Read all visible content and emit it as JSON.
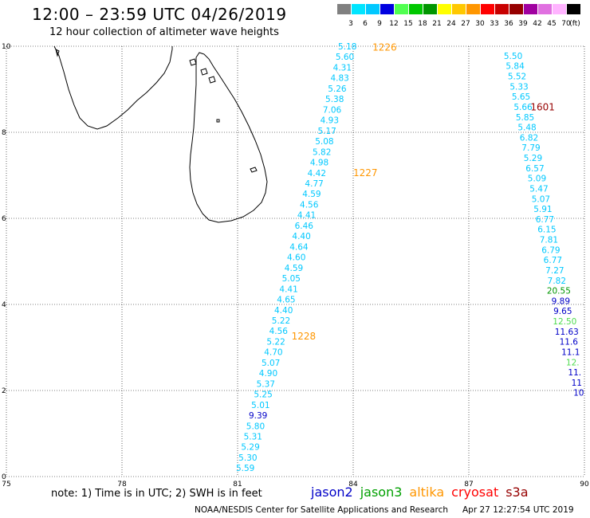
{
  "header": {
    "title": "12:00 – 23:59 UTC 04/26/2019",
    "subtitle": "12 hour collection of altimeter wave heights"
  },
  "colorbar": {
    "unit_label": "(ft)",
    "bins": [
      {
        "label": "3",
        "color": "#808080"
      },
      {
        "label": "6",
        "color": "#00e5ff"
      },
      {
        "label": "9",
        "color": "#00c8ff"
      },
      {
        "label": "12",
        "color": "#0000e0"
      },
      {
        "label": "15",
        "color": "#50ff50"
      },
      {
        "label": "18",
        "color": "#00c800"
      },
      {
        "label": "21",
        "color": "#009600"
      },
      {
        "label": "24",
        "color": "#ffff00"
      },
      {
        "label": "27",
        "color": "#ffc800"
      },
      {
        "label": "30",
        "color": "#ff9600"
      },
      {
        "label": "33",
        "color": "#ff0000"
      },
      {
        "label": "36",
        "color": "#c80000"
      },
      {
        "label": "39",
        "color": "#960000"
      },
      {
        "label": "42",
        "color": "#a000a0"
      },
      {
        "label": "45",
        "color": "#e070e0"
      },
      {
        "label": "70",
        "color": "#ffb4ff"
      },
      {
        "label": "",
        "color": "#000000"
      }
    ]
  },
  "map": {
    "lon_range": [
      75,
      90
    ],
    "lat_range": [
      0,
      10
    ],
    "x_ticks": [
      "75",
      "78",
      "81",
      "84",
      "87",
      "90"
    ],
    "y_ticks": [
      "0",
      "2",
      "4",
      "6",
      "8",
      "10"
    ],
    "grid": "dotted",
    "land_feature": "Sri Lanka and southern India coastline",
    "pass_labels": [
      {
        "text": "1226",
        "lon": 84.5,
        "lat": 9.97,
        "color": "#ff9600"
      },
      {
        "text": "1227",
        "lon": 84.0,
        "lat": 7.06,
        "color": "#ff9600"
      },
      {
        "text": "1228",
        "lon": 82.4,
        "lat": 3.26,
        "color": "#ff9600"
      },
      {
        "text": "1601",
        "lon": 88.6,
        "lat": 8.58,
        "color": "#960000"
      }
    ],
    "tracks": [
      {
        "name": "track-west",
        "lon_top": 83.85,
        "lat_top": 10.0,
        "lon_bottom": 81.2,
        "lat_bottom": 0.2,
        "observations": [
          {
            "v": "5.18",
            "c": "#00c8ff"
          },
          {
            "v": "5.60",
            "c": "#00c8ff"
          },
          {
            "v": "4.31",
            "c": "#00c8ff"
          },
          {
            "v": "4.83",
            "c": "#00c8ff"
          },
          {
            "v": "5.26",
            "c": "#00c8ff"
          },
          {
            "v": "5.38",
            "c": "#00c8ff"
          },
          {
            "v": "7.06",
            "c": "#00c8ff"
          },
          {
            "v": "4.93",
            "c": "#00c8ff"
          },
          {
            "v": "5.17",
            "c": "#00c8ff"
          },
          {
            "v": "5.08",
            "c": "#00c8ff"
          },
          {
            "v": "5.82",
            "c": "#00c8ff"
          },
          {
            "v": "4.98",
            "c": "#00c8ff"
          },
          {
            "v": "4.42",
            "c": "#00c8ff"
          },
          {
            "v": "4.77",
            "c": "#00c8ff"
          },
          {
            "v": "4.59",
            "c": "#00c8ff"
          },
          {
            "v": "4.56",
            "c": "#00c8ff"
          },
          {
            "v": "4.41",
            "c": "#00c8ff"
          },
          {
            "v": "6.46",
            "c": "#00c8ff"
          },
          {
            "v": "4.40",
            "c": "#00c8ff"
          },
          {
            "v": "4.64",
            "c": "#00c8ff"
          },
          {
            "v": "4.60",
            "c": "#00c8ff"
          },
          {
            "v": "4.59",
            "c": "#00c8ff"
          },
          {
            "v": "5.05",
            "c": "#00c8ff"
          },
          {
            "v": "4.41",
            "c": "#00c8ff"
          },
          {
            "v": "4.65",
            "c": "#00c8ff"
          },
          {
            "v": "4.40",
            "c": "#00c8ff"
          },
          {
            "v": "5.22",
            "c": "#00c8ff"
          },
          {
            "v": "4.56",
            "c": "#00c8ff"
          },
          {
            "v": "5.22",
            "c": "#00c8ff"
          },
          {
            "v": "4.70",
            "c": "#00c8ff"
          },
          {
            "v": "5.07",
            "c": "#00c8ff"
          },
          {
            "v": "4.90",
            "c": "#00c8ff"
          },
          {
            "v": "5.37",
            "c": "#00c8ff"
          },
          {
            "v": "5.25",
            "c": "#00c8ff"
          },
          {
            "v": "5.01",
            "c": "#00c8ff"
          },
          {
            "v": "9.39",
            "c": "#0000c8"
          },
          {
            "v": "5.80",
            "c": "#00c8ff"
          },
          {
            "v": "5.31",
            "c": "#00c8ff"
          },
          {
            "v": "5.29",
            "c": "#00c8ff"
          },
          {
            "v": "5.30",
            "c": "#00c8ff"
          },
          {
            "v": "5.59",
            "c": "#00c8ff"
          }
        ]
      },
      {
        "name": "track-east",
        "lon_top": 88.15,
        "lat_top": 9.78,
        "lon_bottom": 89.85,
        "lat_bottom": 1.95,
        "observations": [
          {
            "v": "5.50",
            "c": "#00c8ff"
          },
          {
            "v": "5.84",
            "c": "#00c8ff"
          },
          {
            "v": "5.52",
            "c": "#00c8ff"
          },
          {
            "v": "5.33",
            "c": "#00c8ff"
          },
          {
            "v": "5.65",
            "c": "#00c8ff"
          },
          {
            "v": "5.66",
            "c": "#00c8ff"
          },
          {
            "v": "5.85",
            "c": "#00c8ff"
          },
          {
            "v": "5.48",
            "c": "#00c8ff"
          },
          {
            "v": "6.82",
            "c": "#00c8ff"
          },
          {
            "v": "7.79",
            "c": "#00c8ff"
          },
          {
            "v": "5.29",
            "c": "#00c8ff"
          },
          {
            "v": "6.57",
            "c": "#00c8ff"
          },
          {
            "v": "5.09",
            "c": "#00c8ff"
          },
          {
            "v": "5.47",
            "c": "#00c8ff"
          },
          {
            "v": "5.07",
            "c": "#00c8ff"
          },
          {
            "v": "5.91",
            "c": "#00c8ff"
          },
          {
            "v": "6.77",
            "c": "#00c8ff"
          },
          {
            "v": "6.15",
            "c": "#00c8ff"
          },
          {
            "v": "7.81",
            "c": "#00c8ff"
          },
          {
            "v": "6.79",
            "c": "#00c8ff"
          },
          {
            "v": "6.77",
            "c": "#00c8ff"
          },
          {
            "v": "7.27",
            "c": "#00c8ff"
          },
          {
            "v": "7.82",
            "c": "#00c8ff"
          },
          {
            "v": "20.55",
            "c": "#009600"
          },
          {
            "v": "9.89",
            "c": "#0000c8"
          },
          {
            "v": "9.65",
            "c": "#0000c8"
          },
          {
            "v": "12.50",
            "c": "#50dc50"
          },
          {
            "v": "11.63",
            "c": "#0000c8"
          },
          {
            "v": "11.6",
            "c": "#0000c8"
          },
          {
            "v": "11.1",
            "c": "#0000c8"
          },
          {
            "v": "12.",
            "c": "#50dc50"
          },
          {
            "v": "11.",
            "c": "#0000c8"
          },
          {
            "v": "11",
            "c": "#0000c8"
          },
          {
            "v": "10",
            "c": "#0000c8"
          }
        ]
      }
    ]
  },
  "footer": {
    "note": "note: 1) Time is in UTC; 2) SWH is in feet",
    "satellites": [
      {
        "name": "jason2",
        "color": "#0000c8"
      },
      {
        "name": "jason3",
        "color": "#00a000"
      },
      {
        "name": "altika",
        "color": "#ff9600"
      },
      {
        "name": "cryosat",
        "color": "#ff0000"
      },
      {
        "name": "s3a",
        "color": "#960000"
      }
    ],
    "credit": "NOAA/NESDIS Center for Satellite Applications and Research",
    "timestamp": "Apr 27 12:27:54 UTC 2019"
  }
}
